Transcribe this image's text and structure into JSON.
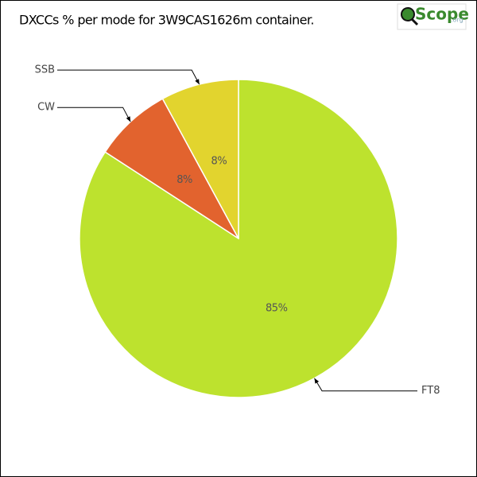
{
  "chart_data": {
    "type": "pie",
    "title": "DXCCs % per mode for 3W9CAS1626m container.",
    "logo": {
      "text": "Scope",
      "suffix": ".org"
    },
    "categories": [
      "FT8",
      "CW",
      "SSB"
    ],
    "values": [
      85,
      8,
      8
    ],
    "value_labels": [
      "85%",
      "8%",
      "8%"
    ],
    "colors": [
      "#bde22e",
      "#e2632e",
      "#e2d42e"
    ]
  }
}
